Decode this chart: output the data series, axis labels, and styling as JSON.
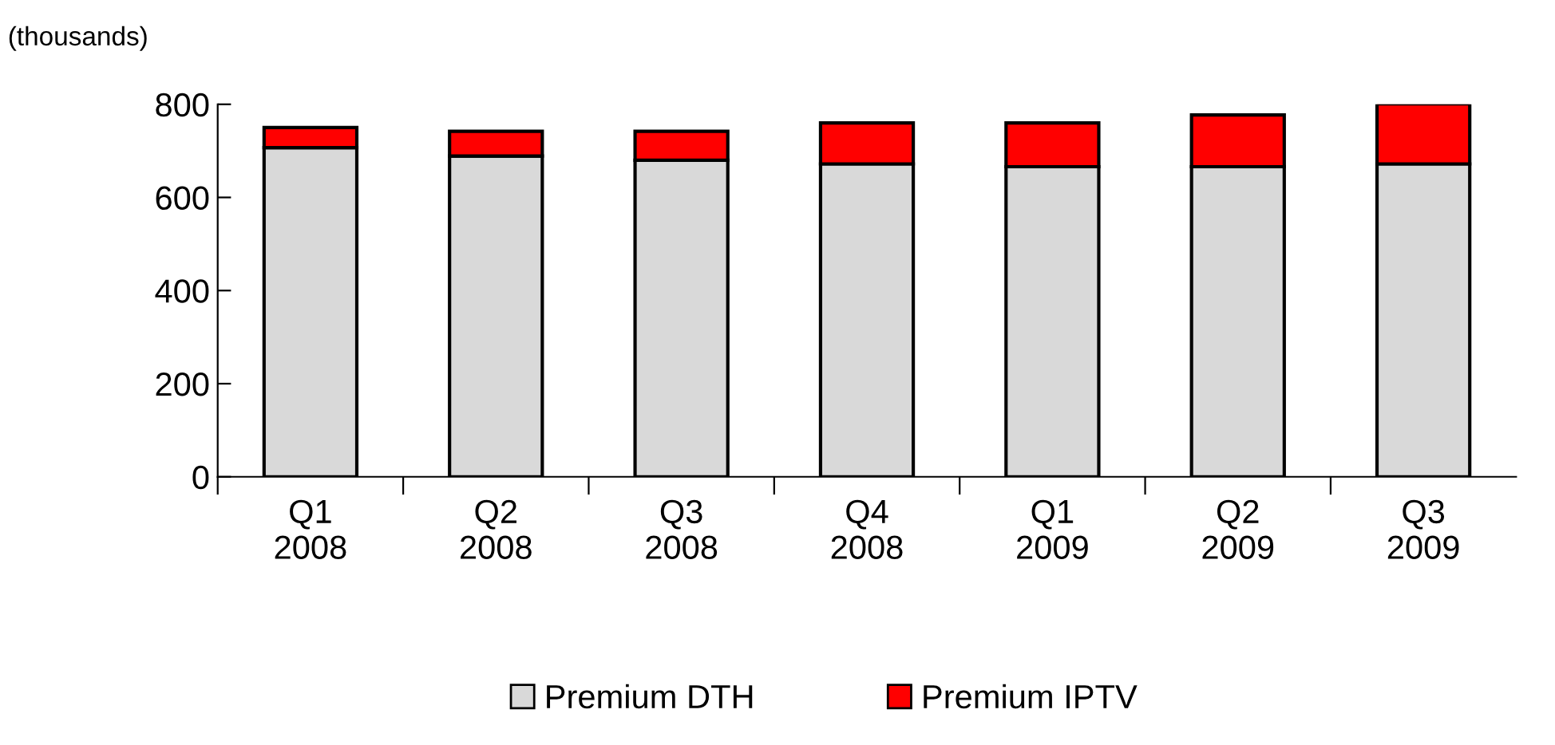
{
  "chart_data": {
    "type": "bar",
    "stacked": true,
    "ylabel": "(thousands)",
    "categories": [
      "Q1\n2008",
      "Q2\n2008",
      "Q3\n2008",
      "Q4\n2008",
      "Q1\n2009",
      "Q2\n2009",
      "Q3\n2009"
    ],
    "series": [
      {
        "name": "Premium DTH",
        "color": "#d9d9d9",
        "values": [
          707,
          689,
          680,
          672,
          666,
          666,
          672
        ]
      },
      {
        "name": "Premium IPTV",
        "color": "#ff0000",
        "values": [
          43,
          53,
          62,
          88,
          94,
          111,
          129
        ]
      }
    ],
    "ylim": [
      0,
      800
    ],
    "yticks": [
      0,
      200,
      400,
      600,
      800
    ],
    "grid": false,
    "legend": "bottom"
  }
}
